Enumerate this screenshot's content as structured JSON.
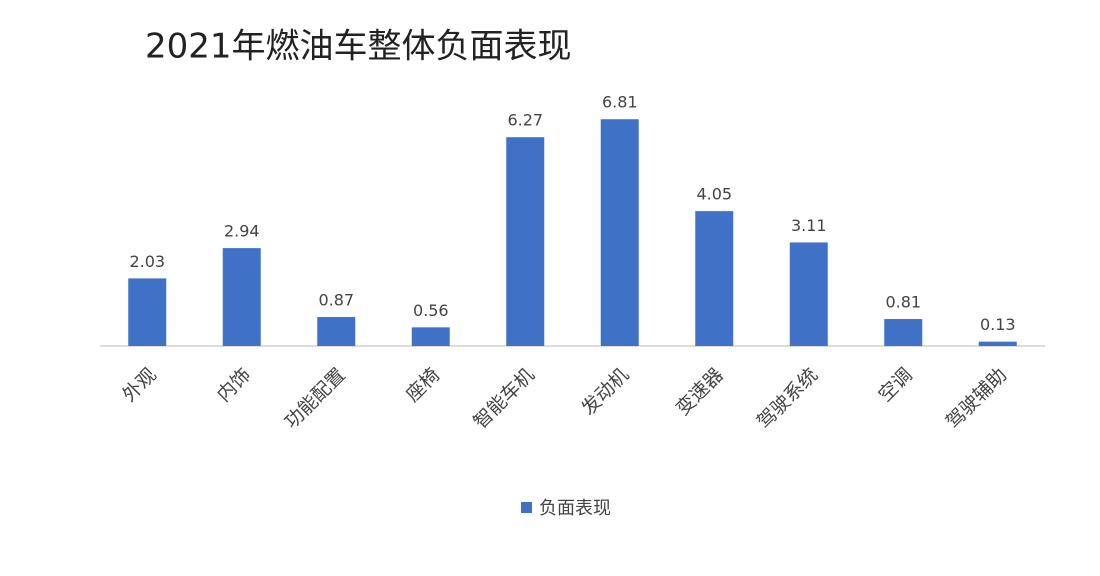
{
  "chart_data": {
    "type": "bar",
    "title": "2021年燃油车整体负面表现",
    "categories": [
      "外观",
      "内饰",
      "功能配置",
      "座椅",
      "智能车机",
      "发动机",
      "变速器",
      "驾驶系统",
      "空调",
      "驾驶辅助"
    ],
    "series": [
      {
        "name": "负面表现",
        "color": "#3f72c6",
        "values": [
          2.03,
          2.94,
          0.87,
          0.56,
          6.27,
          6.81,
          4.05,
          3.11,
          0.81,
          0.13
        ]
      }
    ],
    "legend": "bottom"
  }
}
